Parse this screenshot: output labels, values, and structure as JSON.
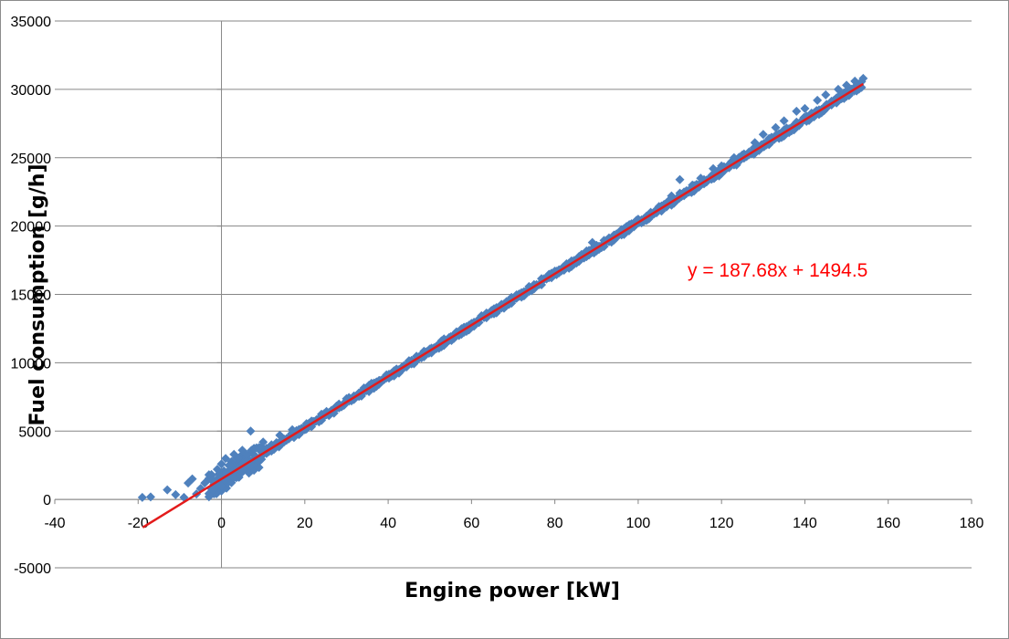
{
  "chart_data": {
    "type": "scatter",
    "xlabel": "Engine power [kW]",
    "ylabel": "Fuel consumption [g/h]",
    "xlim": [
      -40,
      180
    ],
    "ylim": [
      -5000,
      35000
    ],
    "x_ticks": [
      -40,
      -20,
      0,
      20,
      40,
      60,
      80,
      100,
      120,
      140,
      160,
      180
    ],
    "y_ticks": [
      -5000,
      0,
      5000,
      10000,
      15000,
      20000,
      25000,
      30000,
      35000
    ],
    "grid": "horizontal",
    "series": [
      {
        "marker": "diamond",
        "color": "#4f81bd",
        "points": [
          [
            -19,
            150
          ],
          [
            -17,
            180
          ],
          [
            -13,
            700
          ],
          [
            -11,
            350
          ],
          [
            -9,
            150
          ],
          [
            -8,
            1200
          ],
          [
            -7,
            1500
          ],
          [
            -6,
            400
          ],
          [
            -5,
            800
          ],
          [
            -4,
            1200
          ],
          [
            -3,
            1800
          ],
          [
            -2,
            700
          ],
          [
            -1,
            2200
          ],
          [
            0,
            1000
          ],
          [
            0,
            2600
          ],
          [
            1,
            1500
          ],
          [
            1,
            3000
          ],
          [
            2,
            1900
          ],
          [
            2,
            2500
          ],
          [
            3,
            1600
          ],
          [
            3,
            3300
          ],
          [
            4,
            2300
          ],
          [
            4,
            3000
          ],
          [
            5,
            2000
          ],
          [
            5,
            3600
          ],
          [
            6,
            2800
          ],
          [
            6,
            3300
          ],
          [
            7,
            2500
          ],
          [
            7,
            5000
          ],
          [
            8,
            3200
          ],
          [
            9,
            3800
          ],
          [
            10,
            3400
          ],
          [
            10,
            4200
          ],
          [
            12,
            4000
          ],
          [
            14,
            4700
          ],
          [
            15,
            4200
          ],
          [
            17,
            5100
          ],
          [
            20,
            5100
          ],
          [
            22,
            5700
          ],
          [
            25,
            6200
          ],
          [
            28,
            6900
          ],
          [
            30,
            7200
          ],
          [
            33,
            7700
          ],
          [
            35,
            8200
          ],
          [
            38,
            8700
          ],
          [
            40,
            9000
          ],
          [
            42,
            9500
          ],
          [
            45,
            10000
          ],
          [
            48,
            10600
          ],
          [
            50,
            11000
          ],
          [
            53,
            11500
          ],
          [
            55,
            11900
          ],
          [
            58,
            12400
          ],
          [
            60,
            12800
          ],
          [
            63,
            13400
          ],
          [
            65,
            13800
          ],
          [
            68,
            14300
          ],
          [
            70,
            14700
          ],
          [
            72,
            15100
          ],
          [
            75,
            15600
          ],
          [
            78,
            16200
          ],
          [
            80,
            16700
          ],
          [
            82,
            17000
          ],
          [
            85,
            17500
          ],
          [
            88,
            18100
          ],
          [
            89,
            18800
          ],
          [
            90,
            18300
          ],
          [
            93,
            19000
          ],
          [
            95,
            19400
          ],
          [
            98,
            20100
          ],
          [
            100,
            20500
          ],
          [
            103,
            21000
          ],
          [
            105,
            21400
          ],
          [
            108,
            22200
          ],
          [
            110,
            22400
          ],
          [
            110,
            23400
          ],
          [
            113,
            23000
          ],
          [
            115,
            23500
          ],
          [
            118,
            24200
          ],
          [
            120,
            24400
          ],
          [
            123,
            25000
          ],
          [
            125,
            25200
          ],
          [
            128,
            26100
          ],
          [
            130,
            26700
          ],
          [
            133,
            27200
          ],
          [
            135,
            27700
          ],
          [
            138,
            28400
          ],
          [
            140,
            28600
          ],
          [
            143,
            29200
          ],
          [
            145,
            29600
          ],
          [
            148,
            30000
          ],
          [
            150,
            30300
          ],
          [
            152,
            30600
          ],
          [
            154,
            30800
          ]
        ]
      }
    ],
    "trendline": {
      "slope": 187.68,
      "intercept": 1494.5,
      "x_range": [
        -18.9,
        154
      ],
      "color": "#e31b1b",
      "label": "y = 187.68x + 1494.5",
      "label_color": "#ff0000"
    }
  }
}
